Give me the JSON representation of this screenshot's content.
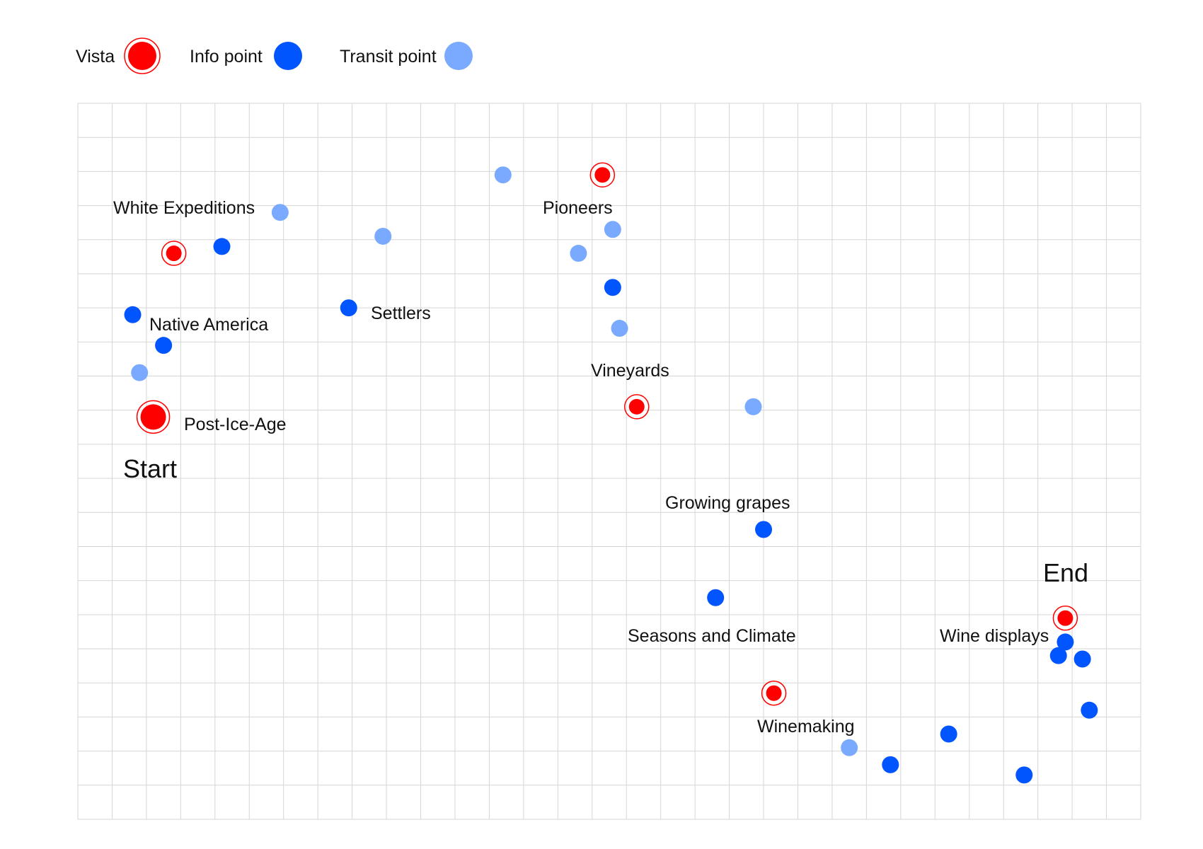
{
  "legend": {
    "vista_label": "Vista",
    "info_label": "Info point",
    "transit_label": "Transit point"
  },
  "colors": {
    "vista": "#ff0000",
    "info": "#0055ff",
    "transit": "#7aaaff",
    "grid": "#d6d6d6",
    "text": "#111111"
  },
  "map": {
    "labels": {
      "start": "Start",
      "end": "End",
      "post_ice_age": "Post-Ice-Age",
      "native_america": "Native America",
      "white_expeditions": "White Expeditions",
      "settlers": "Settlers",
      "pioneers": "Pioneers",
      "vineyards": "Vineyards",
      "growing_grapes": "Growing grapes",
      "seasons_climate": "Seasons and Climate",
      "winemaking": "Winemaking",
      "wine_displays": "Wine displays"
    },
    "points": [
      {
        "kind": "vista",
        "size": "large",
        "col": 2.2,
        "row": 9.2
      },
      {
        "kind": "vista",
        "col": 2.8,
        "row": 4.4
      },
      {
        "kind": "vista",
        "col": 15.3,
        "row": 2.1
      },
      {
        "kind": "vista",
        "col": 16.3,
        "row": 8.9
      },
      {
        "kind": "vista",
        "col": 20.3,
        "row": 17.3
      },
      {
        "kind": "vista",
        "col": 28.8,
        "row": 15.1
      },
      {
        "kind": "info",
        "col": 1.6,
        "row": 6.2
      },
      {
        "kind": "info",
        "col": 2.5,
        "row": 7.1
      },
      {
        "kind": "info",
        "col": 4.2,
        "row": 4.2
      },
      {
        "kind": "info",
        "col": 7.9,
        "row": 6.0
      },
      {
        "kind": "info",
        "col": 15.6,
        "row": 5.4
      },
      {
        "kind": "info",
        "col": 18.6,
        "row": 14.5
      },
      {
        "kind": "info",
        "col": 20.0,
        "row": 12.5
      },
      {
        "kind": "info",
        "col": 23.7,
        "row": 19.4
      },
      {
        "kind": "info",
        "col": 25.4,
        "row": 18.5
      },
      {
        "kind": "info",
        "col": 27.6,
        "row": 19.7
      },
      {
        "kind": "info",
        "col": 28.6,
        "row": 16.2
      },
      {
        "kind": "info",
        "col": 28.8,
        "row": 15.8
      },
      {
        "kind": "info",
        "col": 29.3,
        "row": 16.3
      },
      {
        "kind": "info",
        "col": 29.5,
        "row": 17.8
      },
      {
        "kind": "transit",
        "col": 1.8,
        "row": 7.9
      },
      {
        "kind": "transit",
        "col": 5.9,
        "row": 3.2
      },
      {
        "kind": "transit",
        "col": 8.9,
        "row": 3.9
      },
      {
        "kind": "transit",
        "col": 12.4,
        "row": 2.1
      },
      {
        "kind": "transit",
        "col": 14.6,
        "row": 4.4
      },
      {
        "kind": "transit",
        "col": 15.6,
        "row": 3.7
      },
      {
        "kind": "transit",
        "col": 15.8,
        "row": 6.6
      },
      {
        "kind": "transit",
        "col": 19.7,
        "row": 8.9
      },
      {
        "kind": "transit",
        "col": 22.5,
        "row": 18.9
      }
    ]
  }
}
